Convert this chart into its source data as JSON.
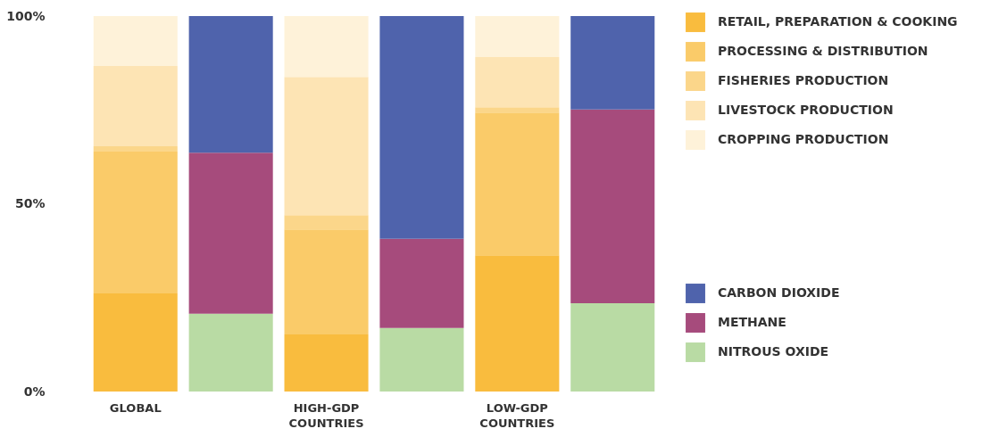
{
  "chart_data": {
    "type": "bar",
    "stacked": true,
    "categories": [
      "GLOBAL",
      null,
      "HIGH-GDP COUNTRIES",
      null,
      "LOW-GDP COUNTRIES",
      null
    ],
    "series": [
      {
        "name": "RETAIL, PREPARATION & COOKING",
        "color": "#f9bc3e",
        "values": [
          26.1,
          null,
          15.2,
          null,
          36.3,
          null
        ]
      },
      {
        "name": "PROCESSING & DISTRIBUTION",
        "color": "#facb69",
        "values": [
          37.8,
          null,
          28.0,
          null,
          38.0,
          null
        ]
      },
      {
        "name": "FISHERIES PRODUCTION",
        "color": "#fbd68a",
        "values": [
          1.4,
          null,
          3.8,
          null,
          1.4,
          null
        ]
      },
      {
        "name": "LIVESTOCK PRODUCTION",
        "color": "#fde4b4",
        "values": [
          21.4,
          null,
          36.8,
          null,
          13.4,
          null
        ]
      },
      {
        "name": "CROPPING PRODUCTION",
        "color": "#fef2d9",
        "values": [
          13.3,
          null,
          16.2,
          null,
          10.9,
          null
        ]
      },
      {
        "name": "NITROUS OXIDE",
        "color": "#b9dba4",
        "values": [
          null,
          20.7,
          null,
          16.9,
          null,
          23.5
        ]
      },
      {
        "name": "METHANE",
        "color": "#a64b7c",
        "values": [
          null,
          42.9,
          null,
          23.8,
          null,
          51.6
        ]
      },
      {
        "name": "CARBON DIOXIDE",
        "color": "#4f63ac",
        "values": [
          null,
          36.4,
          null,
          59.3,
          null,
          24.9
        ]
      }
    ],
    "ylim": [
      0,
      100
    ],
    "yticks": [
      {
        "value": 0,
        "label": "0%"
      },
      {
        "value": 50,
        "label": "50%"
      },
      {
        "value": 100,
        "label": "100%"
      }
    ],
    "grid": false,
    "legend": "right"
  }
}
